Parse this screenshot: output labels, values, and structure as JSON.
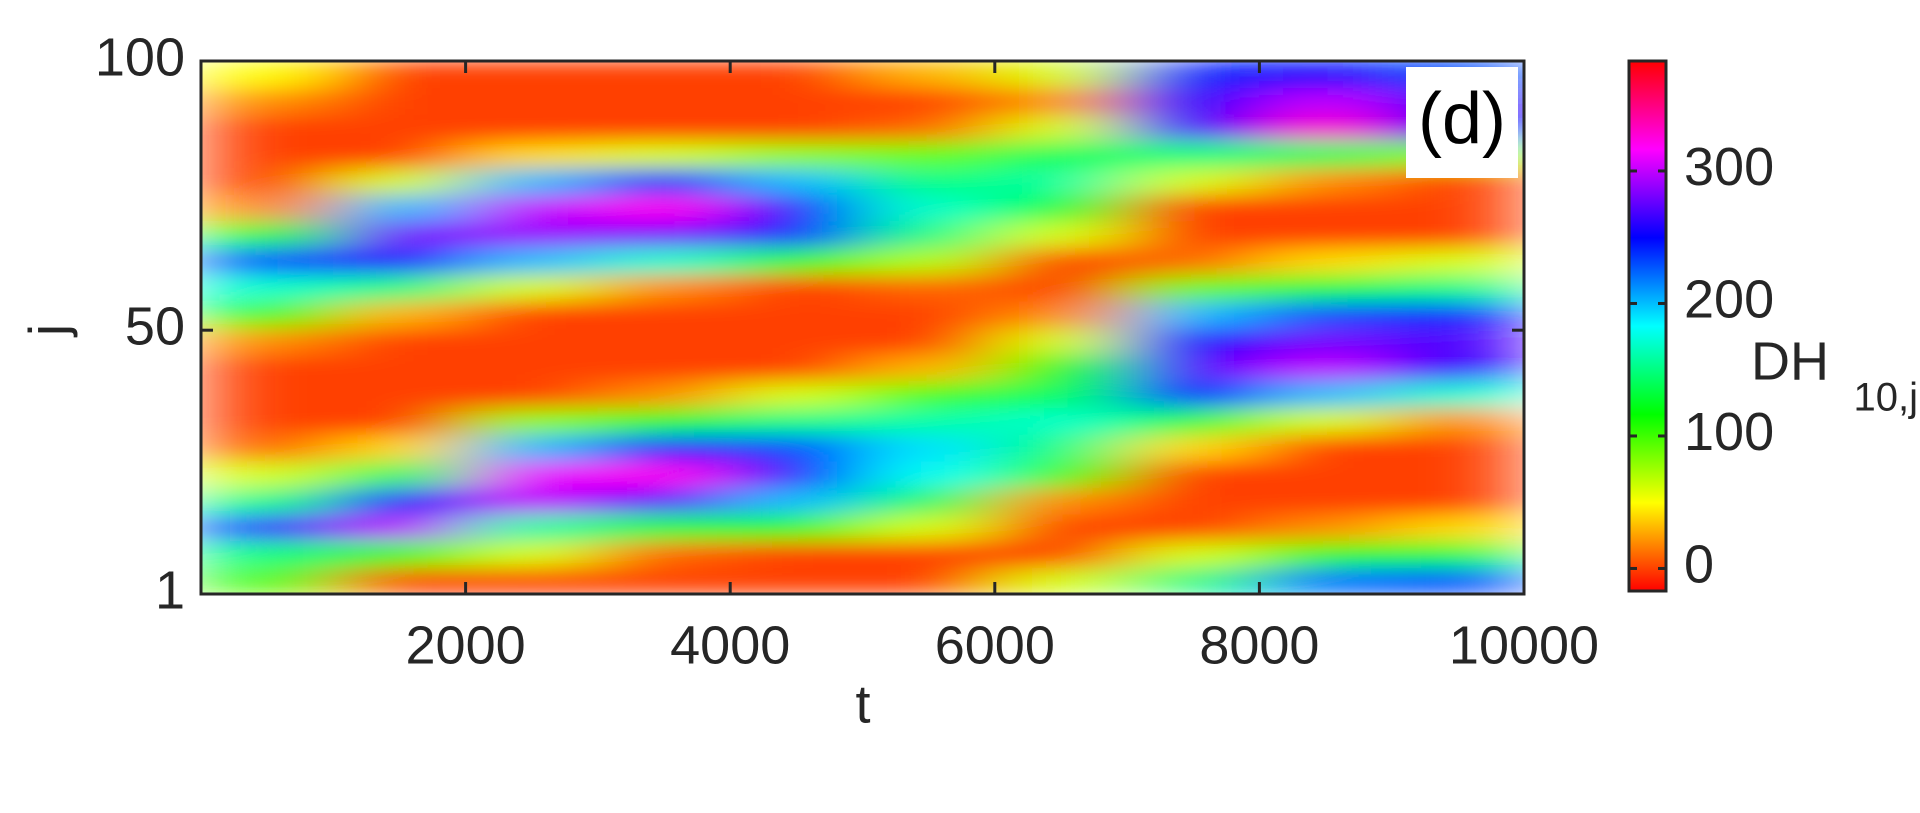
{
  "chart_data": {
    "type": "heatmap",
    "panel_label": "(d)",
    "xlabel": "t",
    "ylabel": "j",
    "colorbar_label": "DH",
    "colorbar_label_subscript": "10,j",
    "xlim": [
      0,
      10000
    ],
    "ylim": [
      1,
      100
    ],
    "xticks": [
      2000,
      4000,
      6000,
      8000,
      10000
    ],
    "yticks": [
      1,
      50,
      100
    ],
    "clim": [
      -17,
      383
    ],
    "cticks": [
      0,
      100,
      200,
      300
    ],
    "colormap": "hsv",
    "z": [
      [
        100,
        0,
        0,
        0,
        0,
        0,
        60,
        150,
        220,
        230
      ],
      [
        150,
        110,
        60,
        10,
        0,
        0,
        0,
        60,
        110,
        130
      ],
      [
        240,
        300,
        160,
        130,
        110,
        60,
        0,
        0,
        20,
        40
      ],
      [
        150,
        250,
        300,
        270,
        200,
        140,
        20,
        0,
        0,
        0
      ],
      [
        60,
        140,
        310,
        320,
        250,
        180,
        100,
        0,
        0,
        0
      ],
      [
        10,
        40,
        200,
        250,
        230,
        190,
        150,
        40,
        0,
        0
      ],
      [
        0,
        0,
        80,
        120,
        150,
        160,
        170,
        130,
        60,
        20
      ],
      [
        0,
        0,
        0,
        20,
        60,
        100,
        140,
        250,
        200,
        170
      ],
      [
        0,
        0,
        0,
        0,
        0,
        30,
        110,
        270,
        300,
        260
      ],
      [
        20,
        0,
        0,
        0,
        0,
        0,
        60,
        250,
        280,
        270
      ],
      [
        110,
        30,
        0,
        0,
        0,
        0,
        20,
        200,
        230,
        240
      ],
      [
        170,
        150,
        60,
        20,
        0,
        10,
        0,
        90,
        130,
        150
      ],
      [
        230,
        260,
        200,
        170,
        110,
        70,
        0,
        10,
        40,
        60
      ],
      [
        120,
        280,
        290,
        280,
        240,
        150,
        60,
        0,
        0,
        0
      ],
      [
        20,
        200,
        300,
        320,
        250,
        170,
        130,
        0,
        0,
        0
      ],
      [
        0,
        60,
        200,
        240,
        200,
        150,
        160,
        60,
        20,
        0
      ],
      [
        0,
        0,
        40,
        60,
        80,
        90,
        140,
        150,
        140,
        80
      ],
      [
        0,
        0,
        0,
        0,
        0,
        10,
        60,
        260,
        330,
        250
      ],
      [
        20,
        0,
        0,
        0,
        0,
        0,
        20,
        250,
        300,
        260
      ],
      [
        50,
        0,
        0,
        0,
        0,
        30,
        60,
        240,
        250,
        230
      ]
    ]
  }
}
